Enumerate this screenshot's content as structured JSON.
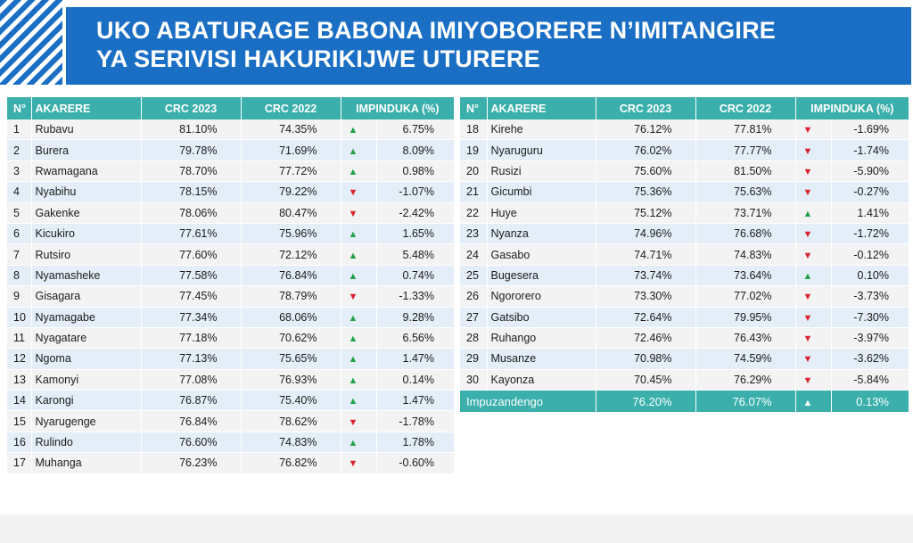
{
  "title": {
    "line1": "UKO ABATURAGE BABONA IMIYOBORERE N’IMITANGIRE",
    "line2": "YA SERIVISI HAKURIKIJWE UTURERE"
  },
  "headers": {
    "no": "N°",
    "district": "AKARERE",
    "crc2023": "CRC 2023",
    "crc2022": "CRC 2022",
    "change": "IMPINDUKA (%)"
  },
  "colors": {
    "teal": "#3aafab",
    "blue": "#1a6fc4",
    "up": "#23a24a",
    "down": "#d9232e"
  },
  "icons": {
    "up": "arrow-up-icon",
    "down": "arrow-down-icon"
  },
  "left_rows": [
    {
      "no": "1",
      "name": "Rubavu",
      "crc2023": "81.10%",
      "crc2022": "74.35%",
      "dir": "up",
      "change": "6.75%"
    },
    {
      "no": "2",
      "name": "Burera",
      "crc2023": "79.78%",
      "crc2022": "71.69%",
      "dir": "up",
      "change": "8.09%"
    },
    {
      "no": "3",
      "name": "Rwamagana",
      "crc2023": "78.70%",
      "crc2022": "77.72%",
      "dir": "up",
      "change": "0.98%"
    },
    {
      "no": "4",
      "name": "Nyabihu",
      "crc2023": "78.15%",
      "crc2022": "79.22%",
      "dir": "down",
      "change": "-1.07%"
    },
    {
      "no": "5",
      "name": "Gakenke",
      "crc2023": "78.06%",
      "crc2022": "80.47%",
      "dir": "down",
      "change": "-2.42%"
    },
    {
      "no": "6",
      "name": "Kicukiro",
      "crc2023": "77.61%",
      "crc2022": "75.96%",
      "dir": "up",
      "change": "1.65%"
    },
    {
      "no": "7",
      "name": "Rutsiro",
      "crc2023": "77.60%",
      "crc2022": "72.12%",
      "dir": "up",
      "change": "5.48%"
    },
    {
      "no": "8",
      "name": "Nyamasheke",
      "crc2023": "77.58%",
      "crc2022": "76.84%",
      "dir": "up",
      "change": "0.74%"
    },
    {
      "no": "9",
      "name": "Gisagara",
      "crc2023": "77.45%",
      "crc2022": "78.79%",
      "dir": "down",
      "change": "-1.33%"
    },
    {
      "no": "10",
      "name": "Nyamagabe",
      "crc2023": "77.34%",
      "crc2022": "68.06%",
      "dir": "up",
      "change": "9.28%"
    },
    {
      "no": "11",
      "name": "Nyagatare",
      "crc2023": "77.18%",
      "crc2022": "70.62%",
      "dir": "up",
      "change": "6.56%"
    },
    {
      "no": "12",
      "name": "Ngoma",
      "crc2023": "77.13%",
      "crc2022": "75.65%",
      "dir": "up",
      "change": "1.47%"
    },
    {
      "no": "13",
      "name": "Kamonyi",
      "crc2023": "77.08%",
      "crc2022": "76.93%",
      "dir": "up",
      "change": "0.14%"
    },
    {
      "no": "14",
      "name": "Karongi",
      "crc2023": "76.87%",
      "crc2022": "75.40%",
      "dir": "up",
      "change": "1.47%"
    },
    {
      "no": "15",
      "name": "Nyarugenge",
      "crc2023": "76.84%",
      "crc2022": "78.62%",
      "dir": "down",
      "change": "-1.78%"
    },
    {
      "no": "16",
      "name": "Rulindo",
      "crc2023": "76.60%",
      "crc2022": "74.83%",
      "dir": "up",
      "change": "1.78%"
    },
    {
      "no": "17",
      "name": "Muhanga",
      "crc2023": "76.23%",
      "crc2022": "76.82%",
      "dir": "down",
      "change": "-0.60%"
    }
  ],
  "right_rows": [
    {
      "no": "18",
      "name": "Kirehe",
      "crc2023": "76.12%",
      "crc2022": "77.81%",
      "dir": "down",
      "change": "-1.69%"
    },
    {
      "no": "19",
      "name": "Nyaruguru",
      "crc2023": "76.02%",
      "crc2022": "77.77%",
      "dir": "down",
      "change": "-1.74%"
    },
    {
      "no": "20",
      "name": "Rusizi",
      "crc2023": "75.60%",
      "crc2022": "81.50%",
      "dir": "down",
      "change": "-5.90%"
    },
    {
      "no": "21",
      "name": "Gicumbi",
      "crc2023": "75.36%",
      "crc2022": "75.63%",
      "dir": "down",
      "change": "-0.27%"
    },
    {
      "no": "22",
      "name": "Huye",
      "crc2023": "75.12%",
      "crc2022": "73.71%",
      "dir": "up",
      "change": "1.41%"
    },
    {
      "no": "23",
      "name": "Nyanza",
      "crc2023": "74.96%",
      "crc2022": "76.68%",
      "dir": "down",
      "change": "-1.72%"
    },
    {
      "no": "24",
      "name": "Gasabo",
      "crc2023": "74.71%",
      "crc2022": "74.83%",
      "dir": "down",
      "change": "-0.12%"
    },
    {
      "no": "25",
      "name": "Bugesera",
      "crc2023": "73.74%",
      "crc2022": "73.64%",
      "dir": "up",
      "change": "0.10%"
    },
    {
      "no": "26",
      "name": "Ngororero",
      "crc2023": "73.30%",
      "crc2022": "77.02%",
      "dir": "down",
      "change": "-3.73%"
    },
    {
      "no": "27",
      "name": "Gatsibo",
      "crc2023": "72.64%",
      "crc2022": "79.95%",
      "dir": "down",
      "change": "-7.30%"
    },
    {
      "no": "28",
      "name": "Ruhango",
      "crc2023": "72.46%",
      "crc2022": "76.43%",
      "dir": "down",
      "change": "-3.97%"
    },
    {
      "no": "29",
      "name": "Musanze",
      "crc2023": "70.98%",
      "crc2022": "74.59%",
      "dir": "down",
      "change": "-3.62%"
    },
    {
      "no": "30",
      "name": "Kayonza",
      "crc2023": "70.45%",
      "crc2022": "76.29%",
      "dir": "down",
      "change": "-5.84%"
    }
  ],
  "total": {
    "label": "Impuzandengo",
    "crc2023": "76.20%",
    "crc2022": "76.07%",
    "dir": "up",
    "change": "0.13%"
  }
}
